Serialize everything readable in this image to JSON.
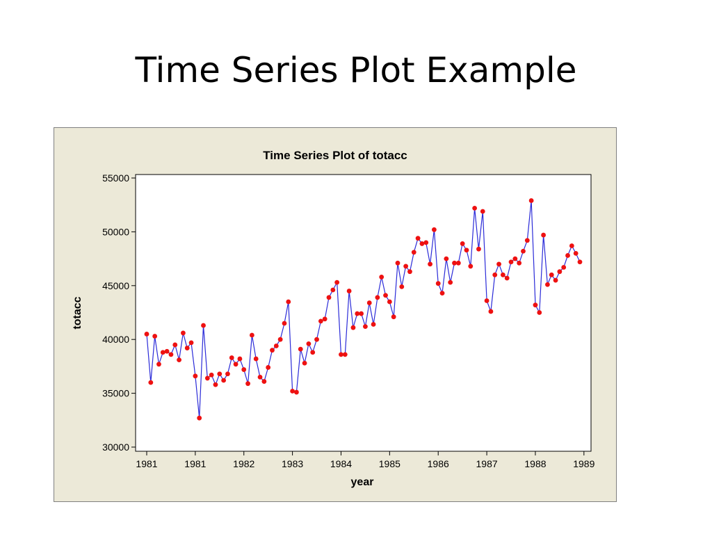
{
  "slide": {
    "title": "Time Series Plot Example"
  },
  "colors": {
    "line": "#2a2ad8",
    "marker": "#ee1111",
    "frame_background": "#ece9d8",
    "plot_background": "#ffffff"
  },
  "chart_data": {
    "type": "line",
    "title": "Time Series Plot of totacc",
    "xlabel": "year",
    "ylabel": "totacc",
    "ylim": [
      30000,
      55000
    ],
    "yticks": [
      30000,
      35000,
      40000,
      45000,
      50000,
      55000
    ],
    "xtick_labels": [
      "1981",
      "1981",
      "1982",
      "1983",
      "1984",
      "1985",
      "1986",
      "1987",
      "1988",
      "1989"
    ],
    "grid": false,
    "legend": "none",
    "markers": true,
    "series": [
      {
        "values": [
          40500,
          36000,
          40300,
          37700,
          38800,
          38900,
          38600,
          39500,
          38100,
          40600,
          39200,
          39700,
          36600,
          32700,
          41300,
          36400,
          36700,
          35800,
          36800,
          36200,
          36800,
          38300,
          37700,
          38200,
          37200,
          35900,
          40400,
          38200,
          36500,
          36100,
          37400,
          39000,
          39400,
          40000,
          41500,
          43500,
          35200,
          35100,
          39100,
          37800,
          39600,
          38800,
          40000,
          41700,
          41900,
          43900,
          44600,
          45300,
          38600,
          38600,
          44500,
          41100,
          42400,
          42400,
          41200,
          43400,
          41400,
          43900,
          45800,
          44100,
          43500,
          42100,
          47100,
          44900,
          46800,
          46300,
          48100,
          49400,
          48900,
          49000,
          47000,
          50200,
          45200,
          44300,
          47500,
          45300,
          47100,
          47100,
          48900,
          48300,
          46800,
          52200,
          48400,
          51900,
          43600,
          42600,
          46000,
          47000,
          46000,
          45700,
          47200,
          47500,
          47100,
          48200,
          49200,
          52900,
          43200,
          42500,
          49700,
          45100,
          46000,
          45500,
          46300,
          46700,
          47800,
          48700,
          48000,
          47200
        ]
      }
    ]
  }
}
